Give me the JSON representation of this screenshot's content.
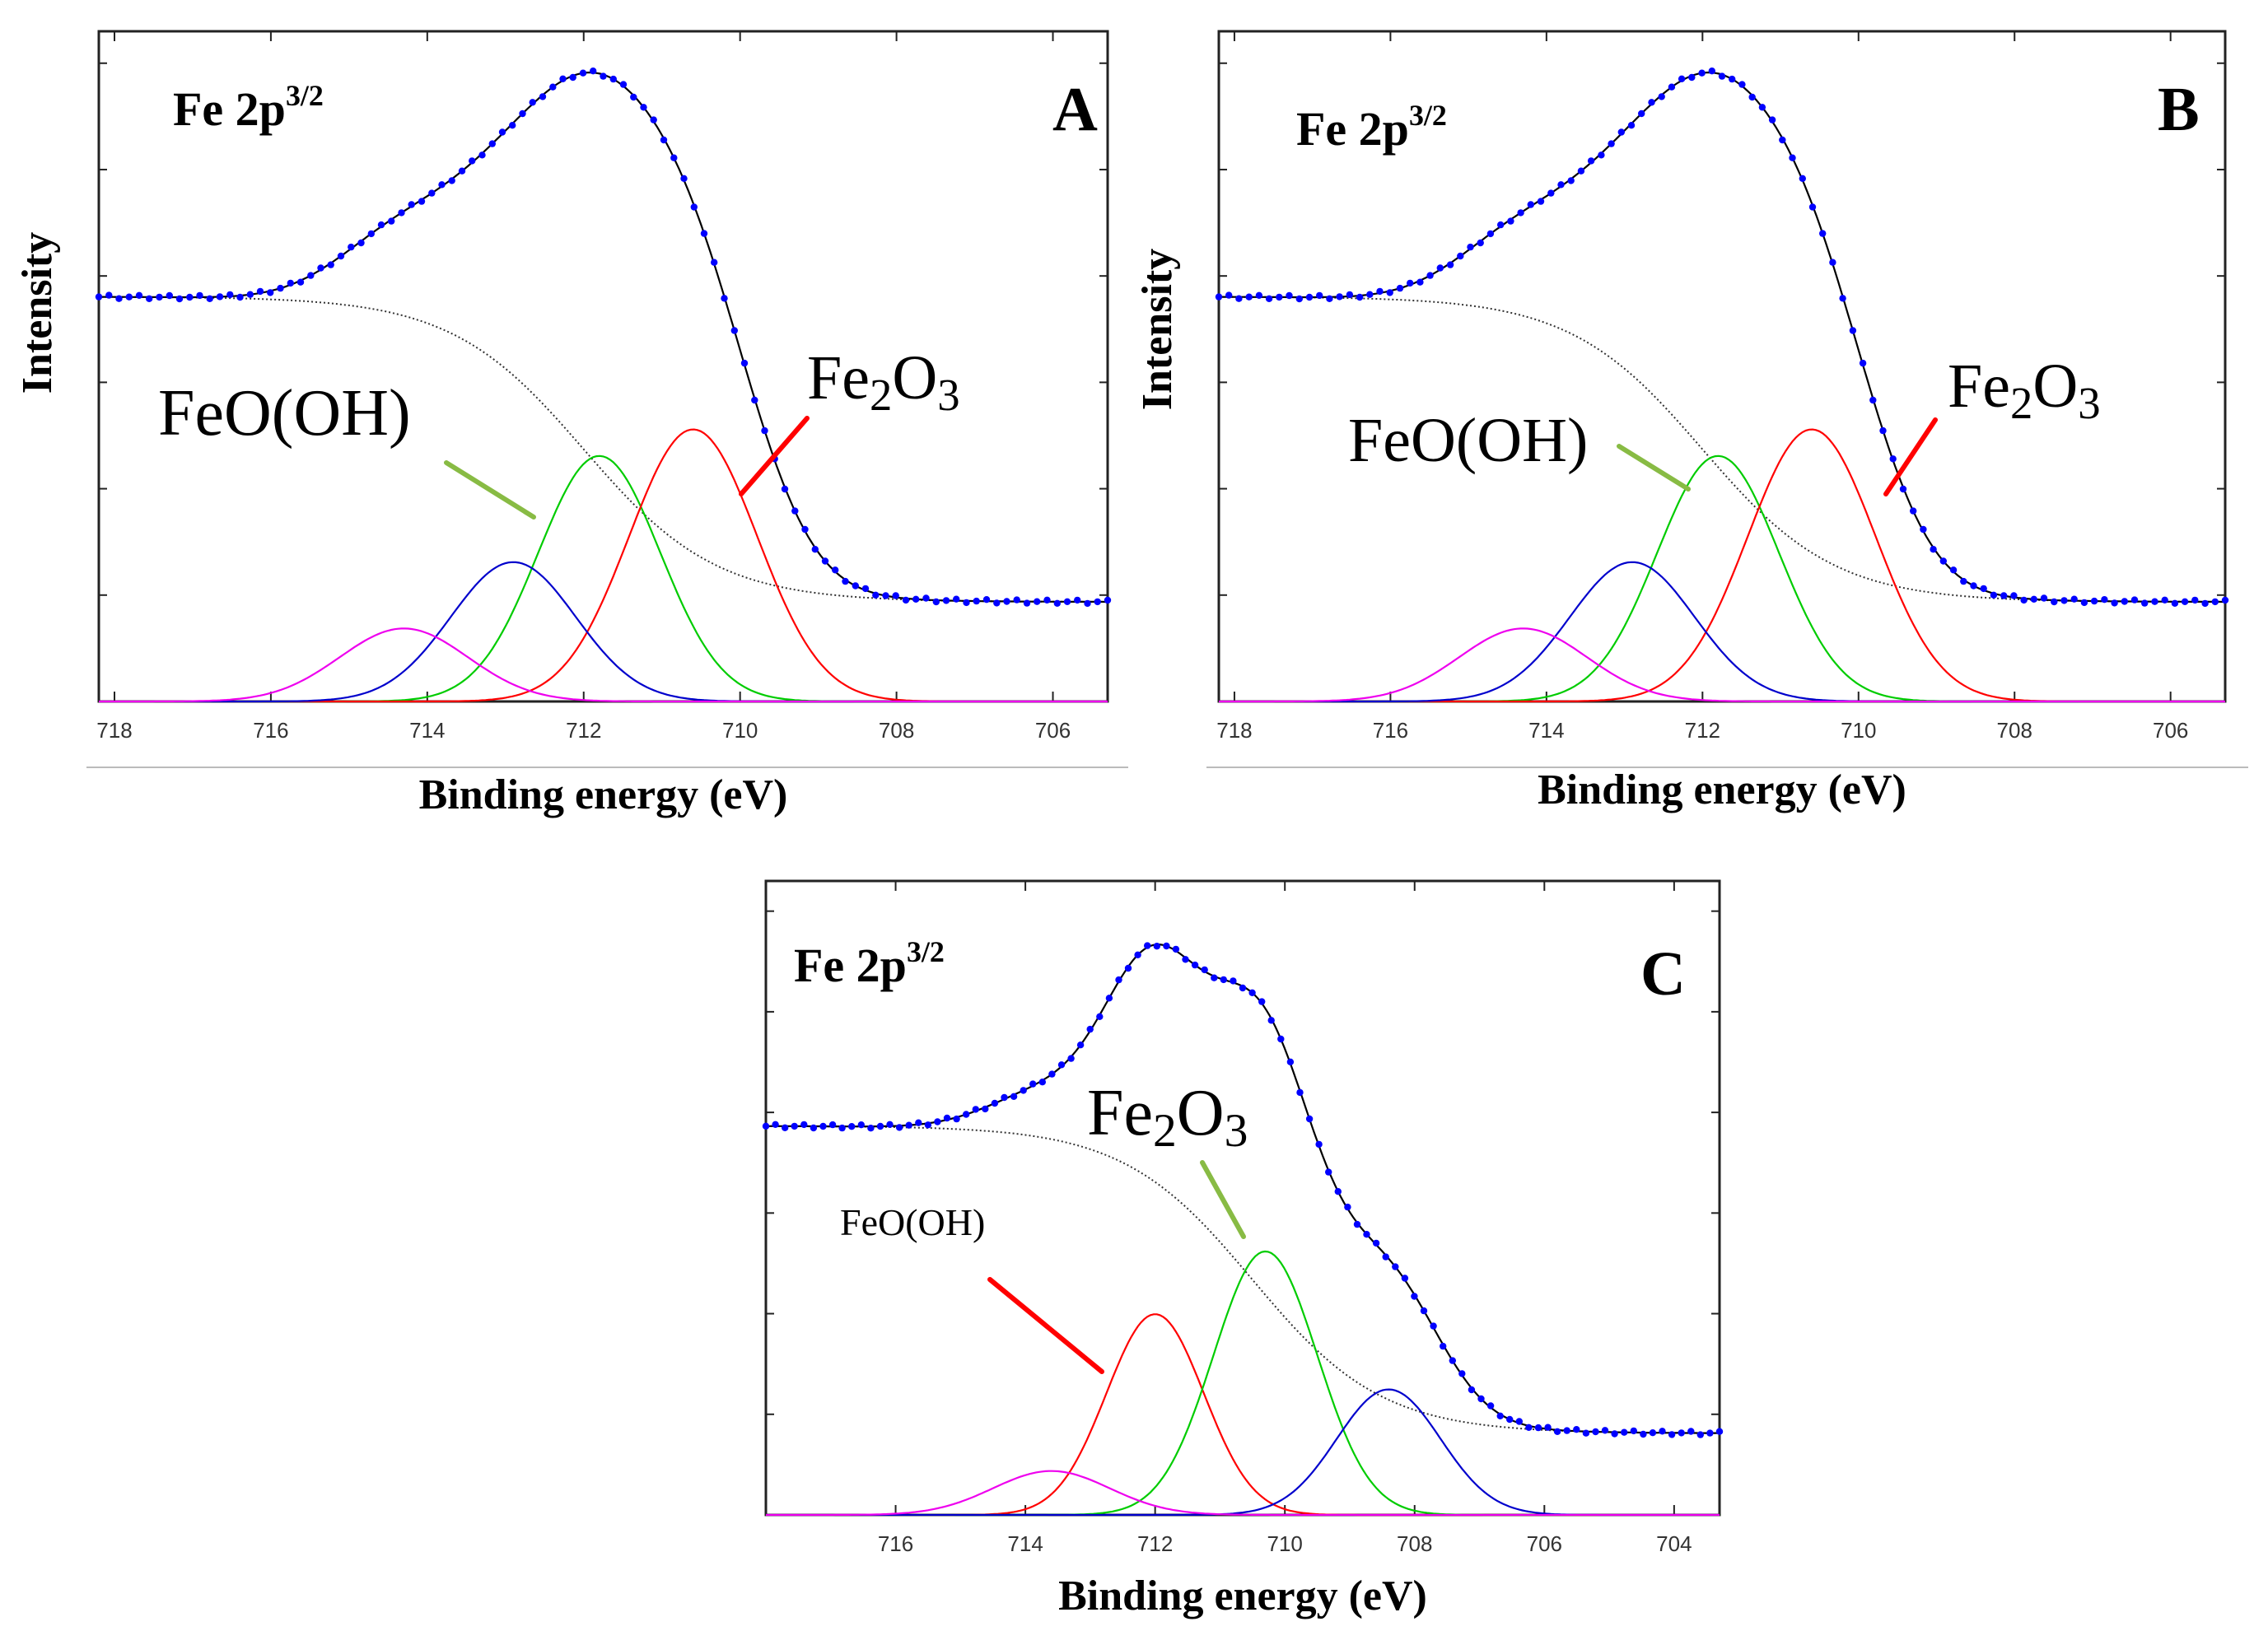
{
  "chart_data": [
    {
      "type": "line",
      "panel_letter": "A",
      "element_label": {
        "main": "Fe 2p",
        "sup": "3/2"
      },
      "xlabel": "Binding energy (eV)",
      "ylabel": "Intensity",
      "xlim": [
        718.2,
        705.3
      ],
      "x_direction": "reversed",
      "xticks": [
        718,
        716,
        714,
        712,
        710,
        708,
        706
      ],
      "ylim": [
        0,
        1
      ],
      "y_tick_labels": "none",
      "background": {
        "y_high": 0.61,
        "y_low": 0.15,
        "center": 712.0,
        "width": 0.85
      },
      "components": [
        {
          "label": "FeO(OH)",
          "color": "#00cc00",
          "center": 711.8,
          "amplitude": 0.37,
          "sigma": 0.78
        },
        {
          "label": "Fe2O3",
          "color": "#ff0000",
          "center": 710.6,
          "amplitude": 0.41,
          "sigma": 0.82
        },
        {
          "color": "#0000cc",
          "center": 712.9,
          "amplitude": 0.21,
          "sigma": 0.8
        },
        {
          "color": "#ee00ee",
          "center": 714.3,
          "amplitude": 0.11,
          "sigma": 0.82
        }
      ],
      "annotations": [
        {
          "text": "FeO(OH)",
          "line_color": "#88bb44",
          "points_to": "FeO(OH) component"
        },
        {
          "text": "Fe2O3",
          "line_color": "#ff0000",
          "points_to": "Fe2O3 component"
        }
      ],
      "fit_color": "#000000",
      "data_marker_color": "#0000ff"
    },
    {
      "type": "line",
      "panel_letter": "B",
      "element_label": {
        "main": "Fe 2p",
        "sup": "3/2"
      },
      "xlabel": "Binding energy (eV)",
      "ylabel": "Intensity",
      "xlim": [
        718.2,
        705.3
      ],
      "x_direction": "reversed",
      "xticks": [
        718,
        716,
        714,
        712,
        710,
        708,
        706
      ],
      "ylim": [
        0,
        1
      ],
      "y_tick_labels": "none",
      "background": {
        "y_high": 0.61,
        "y_low": 0.15,
        "center": 712.0,
        "width": 0.85
      },
      "components": [
        {
          "label": "FeO(OH)",
          "color": "#00cc00",
          "center": 711.8,
          "amplitude": 0.37,
          "sigma": 0.78
        },
        {
          "label": "Fe2O3",
          "color": "#ff0000",
          "center": 710.6,
          "amplitude": 0.41,
          "sigma": 0.82
        },
        {
          "color": "#0000cc",
          "center": 712.9,
          "amplitude": 0.21,
          "sigma": 0.8
        },
        {
          "color": "#ee00ee",
          "center": 714.3,
          "amplitude": 0.11,
          "sigma": 0.82
        }
      ],
      "annotations": [
        {
          "text": "FeO(OH)",
          "line_color": "#88bb44",
          "points_to": "FeO(OH) component"
        },
        {
          "text": "Fe2O3",
          "line_color": "#ff0000",
          "points_to": "Fe2O3 component"
        }
      ],
      "fit_color": "#000000",
      "data_marker_color": "#0000ff"
    },
    {
      "type": "line",
      "panel_letter": "C",
      "element_label": {
        "main": "Fe 2p",
        "sup": "3/2"
      },
      "xlabel": "Binding energy (eV)",
      "ylabel": "",
      "xlim": [
        718.0,
        703.3
      ],
      "x_direction": "reversed",
      "xticks": [
        716,
        714,
        712,
        710,
        708,
        706,
        704
      ],
      "ylim": [
        0,
        1
      ],
      "y_tick_labels": "none",
      "background": {
        "y_high": 0.62,
        "y_low": 0.13,
        "center": 710.5,
        "width": 1.0
      },
      "components": [
        {
          "label": "FeO(OH)",
          "color": "#ff0000",
          "center": 712.0,
          "amplitude": 0.32,
          "sigma": 0.75
        },
        {
          "label": "Fe2O3",
          "color": "#00cc00",
          "center": 710.3,
          "amplitude": 0.42,
          "sigma": 0.8
        },
        {
          "color": "#0000cc",
          "center": 708.4,
          "amplitude": 0.2,
          "sigma": 0.8
        },
        {
          "color": "#ee00ee",
          "center": 713.6,
          "amplitude": 0.07,
          "sigma": 0.9
        }
      ],
      "annotations": [
        {
          "text": "FeO(OH)",
          "line_color": "#ff0000",
          "points_to": "FeO(OH) component"
        },
        {
          "text": "Fe2O3",
          "line_color": "#88bb44",
          "points_to": "Fe2O3 component"
        }
      ],
      "fit_color": "#000000",
      "data_marker_color": "#0000ff"
    }
  ]
}
